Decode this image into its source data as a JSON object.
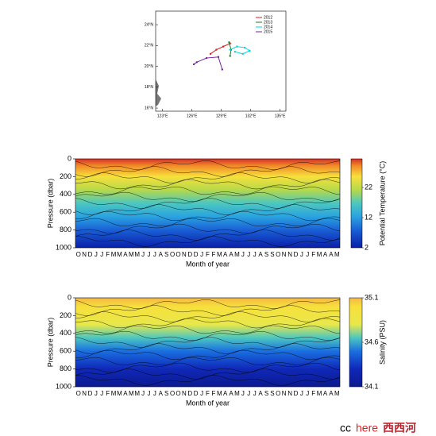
{
  "chart_data": [
    {
      "type": "line",
      "xlim": [
        122.3,
        135.6
      ],
      "ylim": [
        15.7,
        25.3
      ],
      "xticks": [
        {
          "value": 123,
          "label": "123°E"
        },
        {
          "value": 126,
          "label": "126°E"
        },
        {
          "value": 129,
          "label": "129°E"
        },
        {
          "value": 132,
          "label": "132°E"
        },
        {
          "value": 135,
          "label": "135°E"
        }
      ],
      "yticks": [
        {
          "value": 16,
          "label": "16°N"
        },
        {
          "value": 18,
          "label": "18°N"
        },
        {
          "value": 20,
          "label": "20°N"
        },
        {
          "value": 22,
          "label": "22°N"
        },
        {
          "value": 24,
          "label": "24°N"
        }
      ],
      "legend": "upper right",
      "series": [
        {
          "name": "2012",
          "color": "#e41a1c",
          "x": [
            127.9,
            128.5,
            129.2,
            129.9
          ],
          "values": [
            21.2,
            21.6,
            21.9,
            22.2
          ]
        },
        {
          "name": "2013",
          "color": "#2a7a2a",
          "x": [
            129.8,
            130.0,
            129.9
          ],
          "values": [
            22.3,
            21.6,
            21.0
          ]
        },
        {
          "name": "2014",
          "color": "#00d5e0",
          "x": [
            129.9,
            130.6,
            131.4,
            131.9,
            131.2,
            130.4
          ],
          "values": [
            21.6,
            21.9,
            21.8,
            21.5,
            21.2,
            21.4
          ]
        },
        {
          "name": "2015",
          "color": "#7b1fa2",
          "x": [
            126.2,
            126.5,
            127.5,
            128.7,
            129.1
          ],
          "values": [
            20.2,
            20.4,
            20.8,
            20.9,
            19.7
          ]
        }
      ]
    },
    {
      "type": "contour",
      "ylabel": "Pressure (dbar)",
      "xlabel": "Month of year",
      "ylim": [
        1000,
        0
      ],
      "yticks": [
        0,
        200,
        400,
        600,
        800,
        1000
      ],
      "categories": [
        "O",
        "N",
        "D",
        "J",
        "J",
        "F",
        "M",
        "M",
        "A",
        "M",
        "M",
        "J",
        "J",
        "J",
        "A",
        "S",
        "O",
        "O",
        "N",
        "D",
        "D",
        "J",
        "F",
        "F",
        "M",
        "A",
        "A",
        "M",
        "J",
        "J",
        "J",
        "A",
        "S",
        "S",
        "O",
        "N",
        "N",
        "D",
        "J",
        "J",
        "F",
        "M",
        "A",
        "A",
        "M"
      ],
      "clabel": "Potential Temperature (°C)",
      "clim": [
        2,
        31.5
      ],
      "cticks": [
        2,
        12,
        22
      ]
    },
    {
      "type": "contour",
      "ylabel": "Pressure (dbar)",
      "xlabel": "Month of year",
      "ylim": [
        1000,
        0
      ],
      "yticks": [
        0,
        200,
        400,
        600,
        800,
        1000
      ],
      "categories": [
        "O",
        "N",
        "D",
        "J",
        "J",
        "F",
        "M",
        "M",
        "A",
        "M",
        "M",
        "J",
        "J",
        "J",
        "A",
        "S",
        "O",
        "O",
        "N",
        "D",
        "D",
        "J",
        "F",
        "F",
        "M",
        "A",
        "A",
        "M",
        "J",
        "J",
        "J",
        "A",
        "S",
        "S",
        "O",
        "N",
        "N",
        "D",
        "J",
        "J",
        "F",
        "M",
        "A",
        "A",
        "M"
      ],
      "clabel": "Salinity (PSU)",
      "clim": [
        34.1,
        35.1
      ],
      "cticks": [
        34.1,
        34.6,
        35.1
      ]
    }
  ],
  "watermark": {
    "cc": "cc",
    "here": "here",
    "site": "西西河"
  }
}
